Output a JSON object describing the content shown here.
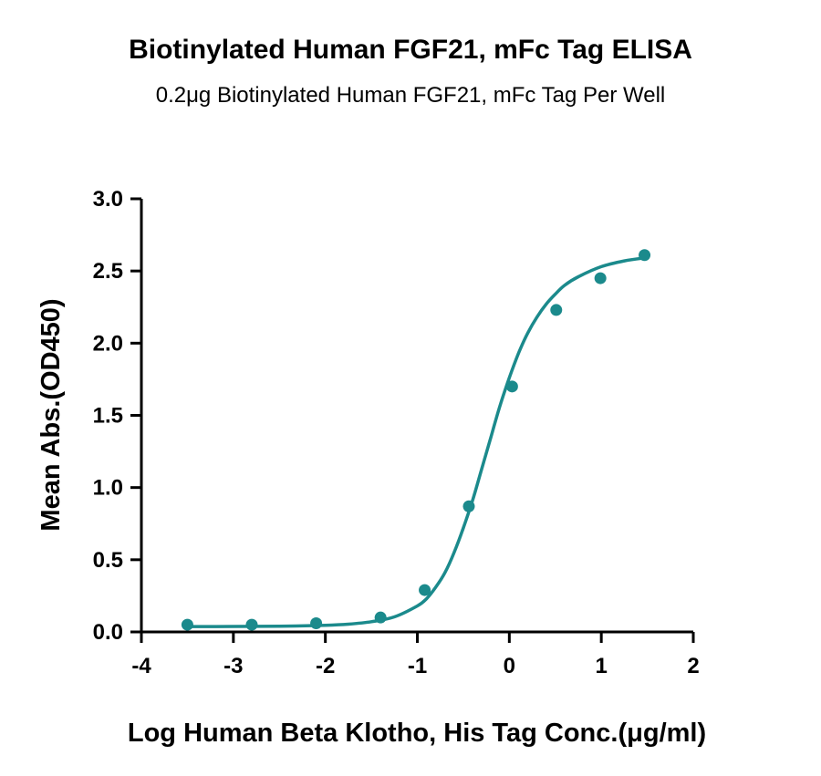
{
  "chart_data": {
    "type": "scatter",
    "title": "Biotinylated Human FGF21, mFc Tag ELISA",
    "subtitle": "0.2μg Biotinylated Human FGF21, mFc Tag Per Well",
    "xlabel": "Log Human Beta Klotho, His Tag Conc.(μg/ml)",
    "ylabel": "Mean Abs.(OD450)",
    "xlim": [
      -4,
      2
    ],
    "ylim": [
      0,
      3.0
    ],
    "xticks": [
      "-4",
      "-3",
      "-2",
      "-1",
      "0",
      "1",
      "2"
    ],
    "yticks": [
      "0.0",
      "0.5",
      "1.0",
      "1.5",
      "2.0",
      "2.5",
      "3.0"
    ],
    "grid": false,
    "color": "#1b8a8c",
    "series": [
      {
        "x": [
          -3.5,
          -2.8,
          -2.1,
          -1.4,
          -0.92,
          -0.44,
          0.03,
          0.51,
          0.99,
          1.47
        ],
        "y": [
          0.05,
          0.05,
          0.06,
          0.1,
          0.29,
          0.87,
          1.7,
          2.23,
          2.45,
          2.61
        ],
        "fit": "4PL",
        "fit_curve": {
          "x": [
            -3.5,
            -3.0,
            -2.5,
            -2.0,
            -1.75,
            -1.5,
            -1.25,
            -1.0,
            -0.9,
            -0.8,
            -0.7,
            -0.6,
            -0.5,
            -0.4,
            -0.3,
            -0.2,
            -0.1,
            0.0,
            0.1,
            0.2,
            0.3,
            0.4,
            0.5,
            0.6,
            0.75,
            1.0,
            1.25,
            1.47
          ],
          "y": [
            0.037,
            0.038,
            0.04,
            0.046,
            0.054,
            0.071,
            0.104,
            0.18,
            0.23,
            0.31,
            0.41,
            0.55,
            0.72,
            0.91,
            1.13,
            1.35,
            1.57,
            1.76,
            1.93,
            2.07,
            2.18,
            2.27,
            2.34,
            2.4,
            2.46,
            2.53,
            2.57,
            2.59
          ]
        }
      }
    ]
  }
}
